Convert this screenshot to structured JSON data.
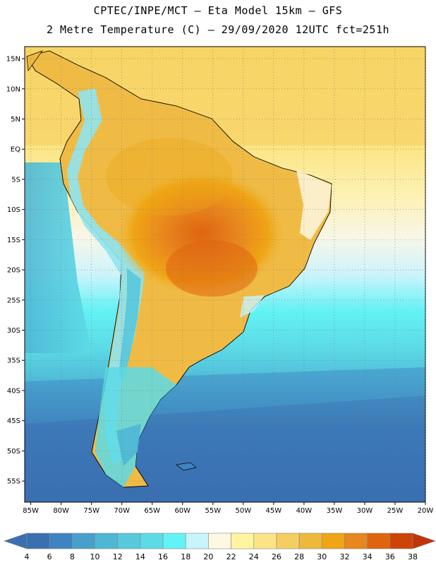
{
  "header": {
    "line1": "CPTEC/INPE/MCT –  Eta Model 15km – GFS",
    "line2": "2 Metre Temperature (C) – 29/09/2020 12UTC fct=251h"
  },
  "map": {
    "lon_range": [
      -86,
      -20
    ],
    "lat_range": [
      -58.5,
      17
    ],
    "lat_ticks": [
      "15N",
      "10N",
      "5N",
      "EQ",
      "5S",
      "10S",
      "15S",
      "20S",
      "25S",
      "30S",
      "35S",
      "40S",
      "45S",
      "50S",
      "55S"
    ],
    "lat_values": [
      15,
      10,
      5,
      0,
      -5,
      -10,
      -15,
      -20,
      -25,
      -30,
      -35,
      -40,
      -45,
      -50,
      -55
    ],
    "lon_ticks": [
      "85W",
      "80W",
      "75W",
      "70W",
      "65W",
      "60W",
      "55W",
      "50W",
      "45W",
      "40W",
      "35W",
      "30W",
      "25W",
      "20W"
    ],
    "lon_values": [
      -85,
      -80,
      -75,
      -70,
      -65,
      -60,
      -55,
      -50,
      -45,
      -40,
      -35,
      -30,
      -25,
      -20
    ],
    "grid": true,
    "grid_style": "dotted"
  },
  "colorbar": {
    "labels": [
      "4",
      "6",
      "8",
      "10",
      "12",
      "14",
      "16",
      "18",
      "20",
      "22",
      "24",
      "26",
      "28",
      "30",
      "32",
      "34",
      "36",
      "38"
    ],
    "colors": [
      "#3a6fb0",
      "#3f83c0",
      "#47a0cc",
      "#4fb7d6",
      "#58c8dc",
      "#5cdbe6",
      "#63f2f5",
      "#c8f4fb",
      "#fdf8e2",
      "#fff5a0",
      "#fce486",
      "#f5ce62",
      "#ecb93d",
      "#efa515",
      "#e8871e",
      "#df6410",
      "#cc4406"
    ],
    "min_arrow_color": "#3a6fb0",
    "max_arrow_color": "#c03408"
  }
}
